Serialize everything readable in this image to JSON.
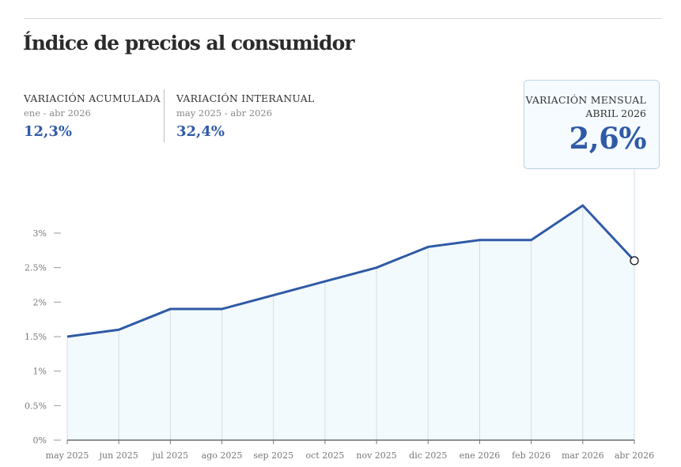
{
  "title": "Índice de precios al consumidor",
  "stats": {
    "acumulada": {
      "label": "VARIACIÓN ACUMULADA",
      "period": "ene - abr 2026",
      "value": "12,3%"
    },
    "interanual": {
      "label": "VARIACIÓN INTERANUAL",
      "period": "may 2025 - abr 2026",
      "value": "32,4%"
    }
  },
  "tooltip": {
    "label": "VARIACIÓN MENSUAL",
    "period": "ABRIL 2026",
    "value": "2,6%"
  },
  "colors": {
    "line": "#2f5aa6",
    "area": "#f3fafd",
    "tooltip_border": "#b9d2e3"
  },
  "chart_data": {
    "type": "area",
    "categories": [
      "may 2025",
      "jun 2025",
      "jul 2025",
      "ago 2025",
      "sep 2025",
      "oct 2025",
      "nov 2025",
      "dic 2025",
      "ene 2026",
      "feb 2026",
      "mar 2026",
      "abr 2026"
    ],
    "values": [
      1.5,
      1.6,
      1.9,
      1.9,
      2.1,
      2.3,
      2.5,
      2.8,
      2.9,
      2.9,
      3.4,
      2.6
    ],
    "y_ticks": [
      "0%",
      "0.5%",
      "1%",
      "1.5%",
      "2%",
      "2.5%",
      "3%"
    ],
    "y_tick_values": [
      0,
      0.5,
      1,
      1.5,
      2,
      2.5,
      3
    ],
    "ylim": [
      0,
      3.5
    ],
    "highlighted_category": "abr 2026",
    "grid": "vertical-per-category"
  }
}
